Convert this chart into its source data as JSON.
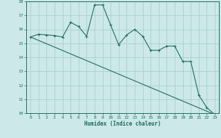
{
  "xlabel": "Humidex (Indice chaleur)",
  "bg_color": "#cce8e8",
  "grid_color": "#aacece",
  "line_color": "#1a6b5a",
  "xlim": [
    -0.5,
    23.5
  ],
  "ylim": [
    10,
    18
  ],
  "yticks": [
    10,
    11,
    12,
    13,
    14,
    15,
    16,
    17,
    18
  ],
  "xticks": [
    0,
    1,
    2,
    3,
    4,
    5,
    6,
    7,
    8,
    9,
    10,
    11,
    12,
    13,
    14,
    15,
    16,
    17,
    18,
    19,
    20,
    21,
    22,
    23
  ],
  "line1_x": [
    0,
    1,
    2,
    3,
    4,
    5,
    6,
    7,
    8,
    9,
    10,
    11,
    12,
    13,
    14,
    15,
    16,
    17,
    18,
    19,
    20,
    21,
    22,
    23
  ],
  "line1_y": [
    15.45,
    15.65,
    15.6,
    15.55,
    15.45,
    16.5,
    16.2,
    15.5,
    17.75,
    17.75,
    16.3,
    14.9,
    15.6,
    16.0,
    15.5,
    14.5,
    14.5,
    14.8,
    14.8,
    13.7,
    13.7,
    11.3,
    10.4,
    9.9
  ],
  "line2_x": [
    0,
    23
  ],
  "line2_y": [
    15.45,
    9.9
  ]
}
